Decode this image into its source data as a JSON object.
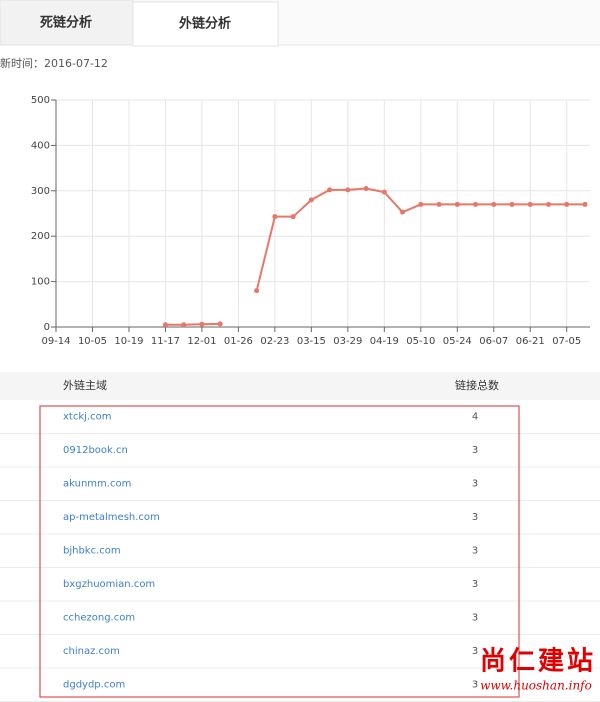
{
  "tabs": [
    "死链分析",
    "外链分析"
  ],
  "update_time": "新时间：2016-07-12",
  "chart_data": {
    "type": "line",
    "categories": [
      "09-14",
      null,
      "10-05",
      null,
      "10-19",
      null,
      "11-17",
      null,
      "12-01",
      null,
      "01-26",
      null,
      "02-23",
      null,
      "03-15",
      null,
      "03-29",
      null,
      "04-19",
      null,
      "05-10",
      null,
      "05-24",
      null,
      "06-07",
      null,
      "06-21",
      null,
      "07-05",
      null
    ],
    "values": [
      null,
      null,
      null,
      null,
      null,
      null,
      5,
      5,
      6,
      7,
      null,
      80,
      243,
      243,
      280,
      302,
      302,
      305,
      297,
      253,
      270,
      270,
      270,
      270,
      270,
      270,
      270,
      270,
      270,
      270
    ],
    "color": "#e8776a",
    "ylim": [
      0,
      500
    ],
    "yticks": [
      0,
      100,
      200,
      300,
      400,
      500
    ],
    "grid": true
  },
  "table": {
    "header": [
      "外链主域",
      "链接总数"
    ],
    "rows": [
      [
        "xtckj.com",
        4
      ],
      [
        "0912book.cn",
        3
      ],
      [
        "akunmm.com",
        3
      ],
      [
        "ap-metalmesh.com",
        3
      ],
      [
        "bjhbkc.com",
        3
      ],
      [
        "bxgzhuomian.com",
        3
      ],
      [
        "cchezong.com",
        3
      ],
      [
        "chinaz.com",
        3
      ],
      [
        "dgdydp.com",
        3
      ]
    ]
  },
  "watermark": {
    "title": "尚仁建站",
    "url": "www.huoshan.info"
  }
}
